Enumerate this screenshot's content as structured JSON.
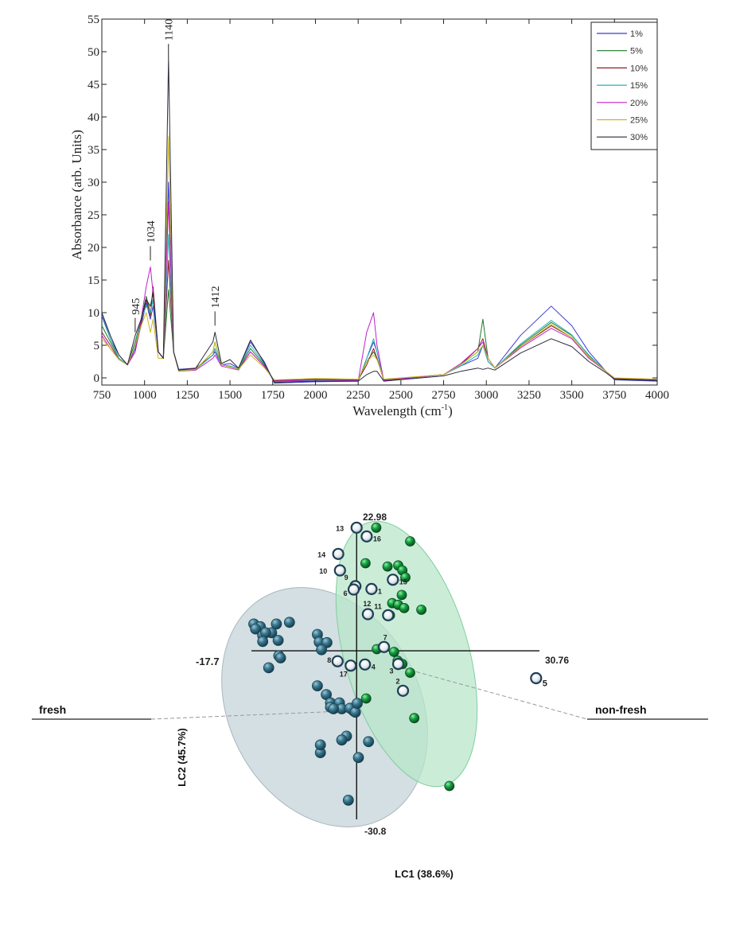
{
  "chart_data": [
    {
      "type": "line",
      "title": "",
      "xlabel": "Wavelength (cm⁻¹)",
      "xlabel_main": "Wavelength (cm",
      "xlabel_sup": "-1",
      "xlabel_close": ")",
      "ylabel": "Absorbance (arb. Units)",
      "xlim": [
        750,
        4000
      ],
      "ylim": [
        -1,
        55
      ],
      "xticks": [
        "750",
        "1000",
        "1250",
        "1500",
        "1750",
        "2000",
        "2250",
        "2500",
        "2750",
        "3000",
        "3250",
        "3500",
        "3750",
        "4000"
      ],
      "yticks": [
        "0",
        "5",
        "10",
        "15",
        "20",
        "25",
        "30",
        "35",
        "40",
        "45",
        "50",
        "55"
      ],
      "legend_position": "top-right",
      "annotations": [
        {
          "label": "945",
          "x": 945,
          "y": 7
        },
        {
          "label": "1034",
          "x": 1034,
          "y": 18
        },
        {
          "label": "1140",
          "x": 1140,
          "y": 49
        },
        {
          "label": "1412",
          "x": 1412,
          "y": 8
        }
      ],
      "series": [
        {
          "name": "1%",
          "color": "#3a3acf",
          "x": [
            750,
            800,
            850,
            900,
            945,
            980,
            1010,
            1034,
            1050,
            1080,
            1110,
            1140,
            1170,
            1200,
            1300,
            1400,
            1412,
            1450,
            1500,
            1550,
            1620,
            1700,
            1760,
            2000,
            2250,
            2300,
            2340,
            2360,
            2400,
            2750,
            2850,
            2950,
            2980,
            3010,
            3050,
            3200,
            3380,
            3500,
            3600,
            3700,
            3750,
            4000
          ],
          "y": [
            9.5,
            6,
            3.5,
            2,
            4.5,
            8,
            11.5,
            9,
            11,
            4,
            3,
            30,
            4,
            1.3,
            1.5,
            3.5,
            4,
            2,
            2.2,
            1.5,
            5.5,
            2.5,
            -0.8,
            -0.6,
            -0.5,
            3,
            5.5,
            4,
            -0.5,
            0.5,
            1.8,
            3,
            5,
            2.5,
            1.5,
            6.5,
            11,
            8,
            4,
            1,
            -0.3,
            -0.5
          ]
        },
        {
          "name": "5%",
          "color": "#1e7a2a",
          "x": [
            750,
            800,
            850,
            900,
            945,
            980,
            1010,
            1034,
            1050,
            1080,
            1110,
            1140,
            1170,
            1200,
            1300,
            1400,
            1412,
            1450,
            1500,
            1550,
            1620,
            1700,
            1760,
            2000,
            2250,
            2300,
            2340,
            2360,
            2400,
            2750,
            2850,
            2950,
            2980,
            3010,
            3050,
            3200,
            3380,
            3500,
            3600,
            3700,
            3750,
            4000
          ],
          "y": [
            8,
            5.5,
            3,
            2,
            5.5,
            9,
            12.5,
            10,
            12,
            4,
            3,
            13.5,
            4,
            1.2,
            1.3,
            4,
            5.5,
            2,
            1.8,
            1.4,
            4.5,
            2,
            -0.5,
            -0.3,
            -0.4,
            2.5,
            4,
            3,
            -0.4,
            0.5,
            2,
            4,
            9,
            3,
            1.5,
            5,
            8.5,
            6.5,
            3.5,
            1,
            -0.2,
            -0.4
          ]
        },
        {
          "name": "10%",
          "color": "#8b1e2a",
          "x": [
            750,
            800,
            850,
            900,
            945,
            980,
            1010,
            1034,
            1050,
            1080,
            1110,
            1140,
            1170,
            1200,
            1300,
            1400,
            1412,
            1450,
            1500,
            1550,
            1620,
            1700,
            1760,
            2000,
            2250,
            2300,
            2340,
            2360,
            2400,
            2750,
            2850,
            2950,
            2980,
            3010,
            3050,
            3200,
            3380,
            3500,
            3600,
            3700,
            3750,
            4000
          ],
          "y": [
            7,
            5,
            2.8,
            2,
            4,
            8.5,
            12,
            9.5,
            14,
            4,
            3,
            18,
            4,
            1.2,
            1.4,
            3.5,
            4.5,
            2,
            1.8,
            1.3,
            4,
            1.8,
            -0.4,
            -0.2,
            -0.3,
            2,
            4.5,
            3,
            -0.3,
            0.5,
            2,
            4.5,
            6,
            3,
            1.5,
            4.8,
            8,
            6.2,
            3.2,
            1,
            -0.1,
            -0.3
          ]
        },
        {
          "name": "15%",
          "color": "#2ab0b8",
          "x": [
            750,
            800,
            850,
            900,
            945,
            980,
            1010,
            1034,
            1050,
            1080,
            1110,
            1140,
            1170,
            1200,
            1300,
            1400,
            1412,
            1450,
            1500,
            1550,
            1620,
            1700,
            1760,
            2000,
            2250,
            2300,
            2340,
            2360,
            2400,
            2750,
            2850,
            2950,
            2980,
            3010,
            3050,
            3200,
            3380,
            3500,
            3600,
            3700,
            3750,
            4000
          ],
          "y": [
            10,
            6,
            3,
            2,
            5,
            9,
            11,
            10,
            12,
            4,
            3,
            22,
            4,
            1.2,
            1.3,
            3.5,
            4.5,
            2,
            1.8,
            1.4,
            5,
            2.2,
            -0.6,
            -0.4,
            -0.4,
            3,
            6,
            4,
            -0.4,
            0.5,
            1.8,
            3.5,
            5,
            2.5,
            1.5,
            5.2,
            8.8,
            6.6,
            3.4,
            1,
            -0.2,
            -0.4
          ]
        },
        {
          "name": "20%",
          "color": "#c020c8",
          "x": [
            750,
            800,
            850,
            900,
            945,
            980,
            1010,
            1034,
            1050,
            1080,
            1110,
            1140,
            1170,
            1200,
            1300,
            1400,
            1412,
            1450,
            1500,
            1550,
            1620,
            1700,
            1760,
            2000,
            2250,
            2300,
            2340,
            2360,
            2400,
            2750,
            2850,
            2950,
            2980,
            3010,
            3050,
            3200,
            3380,
            3500,
            3600,
            3700,
            3750,
            4000
          ],
          "y": [
            6.5,
            4.5,
            2.8,
            2,
            4,
            9,
            14,
            17,
            13,
            4,
            3,
            27,
            4,
            1,
            1.2,
            3,
            3.5,
            1.8,
            1.5,
            1.2,
            4,
            1.8,
            -0.5,
            -0.3,
            -0.4,
            7,
            10,
            5,
            -0.4,
            0.5,
            2.2,
            4.5,
            5.5,
            3,
            1.5,
            4.6,
            7.6,
            6,
            3,
            1,
            -0.2,
            -0.4
          ]
        },
        {
          "name": "25%",
          "color": "#c8b820",
          "x": [
            750,
            800,
            850,
            900,
            945,
            980,
            1010,
            1034,
            1050,
            1080,
            1110,
            1140,
            1170,
            1200,
            1300,
            1400,
            1412,
            1450,
            1500,
            1550,
            1620,
            1700,
            1760,
            2000,
            2250,
            2300,
            2340,
            2360,
            2400,
            2750,
            2850,
            2950,
            2980,
            3010,
            3050,
            3200,
            3380,
            3500,
            3600,
            3700,
            3750,
            4000
          ],
          "y": [
            6,
            4.5,
            2.8,
            2,
            5,
            8,
            10,
            7,
            9,
            3,
            3,
            37,
            4,
            1,
            1.3,
            4,
            5.5,
            2,
            1.7,
            1.3,
            3.5,
            1.6,
            -0.3,
            -0.1,
            -0.2,
            2.5,
            3.5,
            2.8,
            -0.2,
            0.5,
            2,
            4,
            5,
            3,
            1.5,
            4.8,
            8.2,
            6.2,
            3.2,
            1,
            0,
            -0.2
          ]
        },
        {
          "name": "30%",
          "color": "#2a2a3a",
          "x": [
            750,
            800,
            850,
            900,
            945,
            980,
            1010,
            1034,
            1050,
            1080,
            1110,
            1140,
            1170,
            1200,
            1300,
            1400,
            1412,
            1450,
            1500,
            1550,
            1620,
            1700,
            1760,
            2000,
            2250,
            2300,
            2340,
            2360,
            2400,
            2750,
            2850,
            2950,
            2980,
            3010,
            3050,
            3200,
            3380,
            3500,
            3600,
            3700,
            3750,
            4000
          ],
          "y": [
            10,
            6.5,
            3.5,
            2,
            6.5,
            9,
            12,
            11,
            13,
            4,
            3,
            49,
            4,
            1.2,
            1.5,
            5.5,
            7,
            2.2,
            2.8,
            1.5,
            5.8,
            2.3,
            -0.7,
            -0.5,
            -0.5,
            0.5,
            1,
            1,
            -0.5,
            0.3,
            1,
            1.5,
            1.3,
            1.5,
            1.2,
            3.8,
            6,
            4.8,
            2.5,
            0.8,
            -0.2,
            -0.4
          ]
        }
      ]
    },
    {
      "type": "scatter",
      "title": "",
      "xlabel": "LC1 (38.6%)",
      "ylabel": "LC2 (45.7%)",
      "xlim": [
        -17.7,
        30.76
      ],
      "ylim": [
        -30.8,
        22.98
      ],
      "axis_end_labels": {
        "xmin": "-17.7",
        "xmax": "30.76",
        "ymax": "22.98",
        "ymin": "-30.8"
      },
      "direction_labels": {
        "left": "fresh",
        "right": "non-fresh"
      },
      "groups": [
        {
          "name": "fresh cluster",
          "color": "#2f6f86",
          "ellipse_color": "#cdd9de",
          "points": [
            [
              -17.3,
              4.9
            ],
            [
              -16.2,
              4.4
            ],
            [
              -17,
              4
            ],
            [
              -14.3,
              3.3
            ],
            [
              -13.5,
              4.9
            ],
            [
              -15.8,
              2.8
            ],
            [
              -15.3,
              3.3
            ],
            [
              -15.8,
              1.7
            ],
            [
              -13.2,
              1.9
            ],
            [
              -11.3,
              5.2
            ],
            [
              -13.1,
              -0.9
            ],
            [
              -12.8,
              -1.3
            ],
            [
              -14.8,
              -3.1
            ],
            [
              -6.6,
              3
            ],
            [
              -6.3,
              1.6
            ],
            [
              -5,
              1.5
            ],
            [
              -5.9,
              0.2
            ],
            [
              -6.6,
              -6.4
            ],
            [
              -5.1,
              -8
            ],
            [
              -4.4,
              -9.5
            ],
            [
              -4.4,
              -10.3
            ],
            [
              -2.9,
              -9.5
            ],
            [
              -0.5,
              -11
            ],
            [
              -2.5,
              -10.6
            ],
            [
              -3.9,
              -10.6
            ],
            [
              -1.7,
              -15.6
            ],
            [
              -2.5,
              -16.3
            ],
            [
              -6.1,
              -18.6
            ],
            [
              -6.1,
              -17.2
            ],
            [
              0.3,
              -19.5
            ],
            [
              2,
              -16.6
            ],
            [
              -1.4,
              -27.3
            ],
            [
              -1.1,
              -10.5
            ],
            [
              -0.2,
              -11.2
            ],
            [
              0.1,
              -9.6
            ]
          ]
        },
        {
          "name": "non-fresh cluster",
          "color": "#1f9a3a",
          "ellipse_color": "#b7e6c9",
          "points": [
            [
              3.3,
              22.5
            ],
            [
              9,
              20
            ],
            [
              1.5,
              16
            ],
            [
              5.2,
              15.4
            ],
            [
              7,
              15.6
            ],
            [
              7.7,
              14.7
            ],
            [
              8.2,
              13.4
            ],
            [
              7.6,
              10.2
            ],
            [
              6,
              8.7
            ],
            [
              7,
              8.4
            ],
            [
              8,
              7.8
            ],
            [
              10.9,
              7.5
            ],
            [
              3.4,
              0.3
            ],
            [
              6.3,
              -0.2
            ],
            [
              6.9,
              -1.8
            ],
            [
              9,
              -4
            ],
            [
              1.6,
              -8.7
            ],
            [
              9.7,
              -12.3
            ],
            [
              15.6,
              -24.7
            ],
            [
              5.6,
              6.5
            ],
            [
              7.7,
              -2.4
            ]
          ]
        },
        {
          "name": "numbered samples",
          "color": "#f2f4f6",
          "points": [
            [
              0,
              22.5,
              "13"
            ],
            [
              1.7,
              20.9,
              "16"
            ],
            [
              -3.1,
              17.7,
              "14"
            ],
            [
              -2.8,
              14.7,
              "10"
            ],
            [
              -0.2,
              11.8,
              "9"
            ],
            [
              -0.5,
              11.2,
              "6"
            ],
            [
              2.5,
              11.3,
              "1"
            ],
            [
              6.1,
              13,
              "15"
            ],
            [
              1.9,
              6.7,
              "12"
            ],
            [
              5.3,
              6.5,
              "11"
            ],
            [
              4.6,
              0.7,
              "7"
            ],
            [
              -3.2,
              -1.9,
              "8"
            ],
            [
              -1,
              -2.7,
              "17"
            ],
            [
              1.4,
              -2.5,
              "4"
            ],
            [
              7,
              -2.4,
              "3"
            ],
            [
              7.8,
              -7.3,
              "2"
            ],
            [
              30.2,
              -5,
              "5"
            ]
          ]
        }
      ]
    }
  ]
}
